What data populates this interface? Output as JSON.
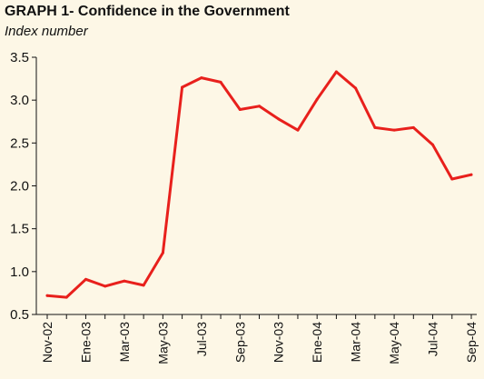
{
  "chart_data": {
    "type": "line",
    "title": "GRAPH 1- Confidence in the Government",
    "subtitle": "Index number",
    "xlabel": "",
    "ylabel": "",
    "ylim": [
      0.5,
      3.5
    ],
    "yticks": [
      "3.5",
      "3.0",
      "2.5",
      "2.0",
      "1.5",
      "1.0",
      "0.5"
    ],
    "ytick_values": [
      3.5,
      3.0,
      2.5,
      2.0,
      1.5,
      1.0,
      0.5
    ],
    "x": [
      "Nov-02",
      "Dic-02",
      "Ene-03",
      "Feb-03",
      "Mar-03",
      "Abr-03",
      "May-03",
      "Jun-03",
      "Jul-03",
      "Ago-03",
      "Sep-03",
      "Oct-03",
      "Nov-03",
      "Dic-03",
      "Ene-04",
      "Feb-04",
      "Mar-04",
      "Abr-04",
      "May-04",
      "Jun-04",
      "Jul-04",
      "Ago-04",
      "Sep-04"
    ],
    "xtick_labels": [
      "Nov-02",
      "Ene-03",
      "Mar-03",
      "May-03",
      "Jul-03",
      "Sep-03",
      "Nov-03",
      "Ene-04",
      "Mar-04",
      "May-04",
      "Jul-04",
      "Sep-04"
    ],
    "series": [
      {
        "color": "#e8201c",
        "values": [
          0.72,
          0.7,
          0.91,
          0.83,
          0.89,
          0.84,
          1.22,
          3.15,
          3.26,
          3.21,
          2.89,
          2.93,
          2.78,
          2.65,
          3.01,
          3.33,
          3.14,
          2.68,
          2.65,
          2.68,
          2.48,
          2.08,
          2.13
        ]
      }
    ],
    "grid": false,
    "legend": "none"
  }
}
